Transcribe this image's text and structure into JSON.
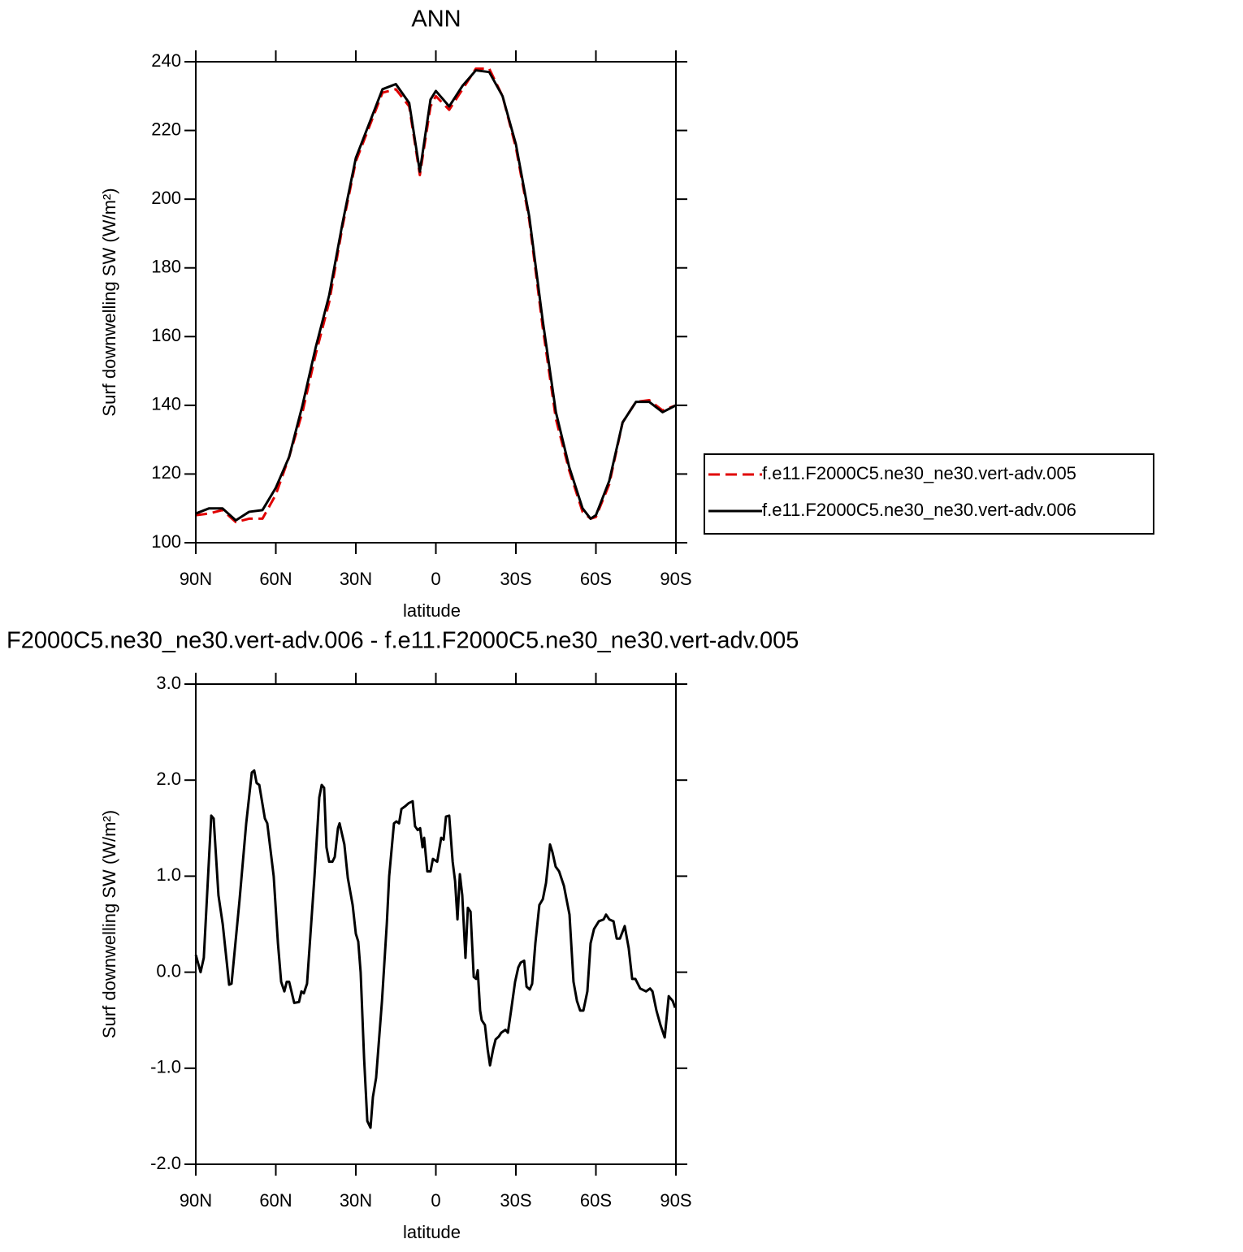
{
  "chart_data": [
    {
      "type": "line",
      "title": "ANN",
      "x_label": "latitude",
      "y_label": "Surf downwelling SW (W/m²)",
      "x": [
        90,
        85,
        80,
        75,
        70,
        65,
        60,
        55,
        50,
        45,
        40,
        35,
        30,
        25,
        20,
        15,
        10,
        6,
        2,
        0,
        -5,
        -10,
        -15,
        -20,
        -25,
        -30,
        -35,
        -40,
        -45,
        -50,
        -55,
        -58,
        -60,
        -65,
        -70,
        -75,
        -80,
        -85,
        -90
      ],
      "series": [
        {
          "name": "f.e11.F2000C5.ne30_ne30.vert-adv.005",
          "color": "#e00000",
          "line_style": "dashed",
          "values": [
            108,
            108.5,
            109.5,
            106,
            107,
            107,
            114,
            125,
            138,
            155,
            170,
            192,
            211,
            221,
            231,
            232,
            227,
            207,
            227,
            230,
            226,
            232,
            238,
            238,
            230,
            215,
            194,
            163,
            136,
            121,
            109,
            107,
            107.5,
            117,
            135,
            141,
            141.5,
            138.5,
            140
          ]
        },
        {
          "name": "f.e11.F2000C5.ne30_ne30.vert-adv.006",
          "color": "#000000",
          "line_style": "solid",
          "values": [
            108.5,
            110,
            110,
            106.5,
            109,
            109.5,
            116,
            125,
            140,
            157,
            172,
            193,
            212,
            222,
            232,
            233.5,
            228,
            208,
            229,
            231.5,
            227,
            233,
            237.5,
            237,
            230,
            216,
            195,
            165,
            138,
            122,
            110,
            107,
            108,
            118,
            135,
            141,
            141,
            138,
            140
          ]
        }
      ],
      "xlim": [
        90,
        -90
      ],
      "xticks": [
        {
          "value": 90,
          "label": "90N"
        },
        {
          "value": 60,
          "label": "60N"
        },
        {
          "value": 30,
          "label": "30N"
        },
        0,
        {
          "value": -30,
          "label": "30S"
        },
        {
          "value": -60,
          "label": "60S"
        },
        {
          "value": -90,
          "label": "90S"
        }
      ],
      "ylim": [
        100,
        240
      ],
      "yticks": [
        100,
        120,
        140,
        160,
        180,
        200,
        220,
        240
      ],
      "legend": "right"
    },
    {
      "type": "line",
      "title": "F2000C5.ne30_ne30.vert-adv.006 - f.e11.F2000C5.ne30_ne30.vert-adv.005",
      "x_label": "latitude",
      "y_label": "Surf downwelling SW (W/m²)",
      "x": [
        90,
        88.2,
        87,
        84.2,
        83.3,
        81.5,
        79.9,
        77.5,
        76.6,
        73.6,
        71.1,
        69,
        68.1,
        67.2,
        66.2,
        64.1,
        63.2,
        60.8,
        59.2,
        58,
        56.8,
        55.9,
        55,
        53.1,
        51.3,
        50.4,
        49.5,
        48.3,
        45.5,
        43.7,
        42.8,
        41.9,
        41,
        40,
        38.8,
        37.9,
        36.7,
        36.1,
        34.3,
        33,
        31.2,
        30,
        29.1,
        28.2,
        26.9,
        25.7,
        24.5,
        23.6,
        22.4,
        20.2,
        18.4,
        17.5,
        15.7,
        14.8,
        13.8,
        12.9,
        11.4,
        10.2,
        8.7,
        7.8,
        6.8,
        5.9,
        5,
        4.4,
        3.2,
        2,
        1.1,
        -0.5,
        -2,
        -2.9,
        -3.8,
        -5,
        -6.3,
        -7.2,
        -8.1,
        -9,
        -9.9,
        -11.1,
        -12,
        -13,
        -14.2,
        -15.1,
        -15.7,
        -16.6,
        -17.2,
        -18.4,
        -19.4,
        -20.3,
        -21.5,
        -22.4,
        -23.6,
        -24.5,
        -26.1,
        -27,
        -28.2,
        -29.7,
        -30.9,
        -31.8,
        -33.1,
        -34,
        -35.2,
        -36.1,
        -37.3,
        -38.8,
        -40.1,
        -41.3,
        -42.8,
        -43.7,
        -44.9,
        -46.2,
        -48,
        -48.9,
        -50.1,
        -51.6,
        -52.9,
        -54.1,
        -55.3,
        -56.8,
        -58,
        -59.3,
        -61.1,
        -62.9,
        -63.8,
        -65,
        -66.6,
        -67.8,
        -69,
        -70.8,
        -72.3,
        -73.6,
        -74.8,
        -76.6,
        -78.8,
        -80.3,
        -81.2,
        -82.7,
        -84.2,
        -85.8,
        -87.3,
        -88.8,
        -89.7
      ],
      "series": [
        {
          "color": "#000000",
          "line_style": "solid",
          "values": [
            0.18,
            0,
            0.15,
            1.63,
            1.6,
            0.8,
            0.5,
            -0.13,
            -0.12,
            0.75,
            1.55,
            2.08,
            2.1,
            1.97,
            1.95,
            1.6,
            1.55,
            1,
            0.3,
            -0.1,
            -0.2,
            -0.1,
            -0.1,
            -0.32,
            -0.31,
            -0.2,
            -0.22,
            -0.12,
            1,
            1.82,
            1.95,
            1.92,
            1.3,
            1.15,
            1.15,
            1.2,
            1.5,
            1.55,
            1.33,
            0.98,
            0.7,
            0.4,
            0.32,
            0,
            -0.9,
            -1.55,
            -1.62,
            -1.3,
            -1.1,
            -0.3,
            0.5,
            1,
            1.55,
            1.57,
            1.55,
            1.7,
            1.73,
            1.76,
            1.78,
            1.52,
            1.48,
            1.5,
            1.3,
            1.4,
            1.05,
            1.05,
            1.18,
            1.15,
            1.4,
            1.38,
            1.62,
            1.63,
            1.15,
            0.95,
            0.55,
            1.02,
            0.8,
            0.15,
            0.67,
            0.63,
            -0.05,
            -0.07,
            0.02,
            -0.4,
            -0.5,
            -0.55,
            -0.8,
            -0.97,
            -0.8,
            -0.7,
            -0.67,
            -0.63,
            -0.6,
            -0.63,
            -0.4,
            -0.1,
            0.05,
            0.1,
            0.12,
            -0.15,
            -0.18,
            -0.12,
            0.3,
            0.7,
            0.76,
            0.93,
            1.33,
            1.25,
            1.1,
            1.05,
            0.9,
            0.77,
            0.6,
            -0.1,
            -0.3,
            -0.4,
            -0.4,
            -0.2,
            0.3,
            0.45,
            0.53,
            0.55,
            0.6,
            0.55,
            0.53,
            0.35,
            0.35,
            0.48,
            0.25,
            -0.07,
            -0.07,
            -0.17,
            -0.2,
            -0.17,
            -0.2,
            -0.4,
            -0.55,
            -0.68,
            -0.25,
            -0.3,
            -0.37
          ]
        }
      ],
      "xlim": [
        90,
        -90
      ],
      "xticks": [
        {
          "value": 90,
          "label": "90N"
        },
        {
          "value": 60,
          "label": "60N"
        },
        {
          "value": 30,
          "label": "30N"
        },
        0,
        {
          "value": -30,
          "label": "30S"
        },
        {
          "value": -60,
          "label": "60S"
        },
        {
          "value": -90,
          "label": "90S"
        }
      ],
      "ylim": [
        -2,
        3
      ],
      "yticks": [
        {
          "value": -2,
          "label": "-2.0"
        },
        {
          "value": -1,
          "label": "-1.0"
        },
        {
          "value": 0,
          "label": "0.0"
        },
        {
          "value": 1,
          "label": "1.0"
        },
        {
          "value": 2,
          "label": "2.0"
        },
        {
          "value": 3,
          "label": "3.0"
        }
      ]
    }
  ]
}
